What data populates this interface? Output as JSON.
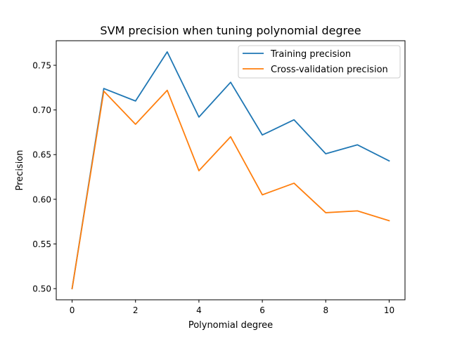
{
  "chart_data": {
    "type": "line",
    "title": "SVM precision when tuning polynomial degree",
    "xlabel": "Polynomial degree",
    "ylabel": "Precision",
    "x": [
      0,
      1,
      2,
      3,
      4,
      5,
      6,
      7,
      8,
      9,
      10
    ],
    "xlim": [
      -0.5,
      10.5
    ],
    "ylim": [
      0.4875,
      0.7775
    ],
    "x_ticks": [
      0,
      2,
      4,
      6,
      8,
      10
    ],
    "x_tick_labels": [
      "0",
      "2",
      "4",
      "6",
      "8",
      "10"
    ],
    "y_ticks": [
      0.5,
      0.55,
      0.6,
      0.65,
      0.7,
      0.75
    ],
    "y_tick_labels": [
      "0.50",
      "0.55",
      "0.60",
      "0.65",
      "0.70",
      "0.75"
    ],
    "grid": false,
    "legend_position": "top-right",
    "series": [
      {
        "name": "Training precision",
        "color": "#1f77b4",
        "values": [
          0.5,
          0.724,
          0.71,
          0.765,
          0.692,
          0.731,
          0.672,
          0.689,
          0.651,
          0.661,
          0.643
        ]
      },
      {
        "name": "Cross-validation precision",
        "color": "#ff7f0e",
        "values": [
          0.5,
          0.721,
          0.684,
          0.722,
          0.632,
          0.67,
          0.605,
          0.618,
          0.585,
          0.587,
          0.576
        ]
      }
    ]
  }
}
